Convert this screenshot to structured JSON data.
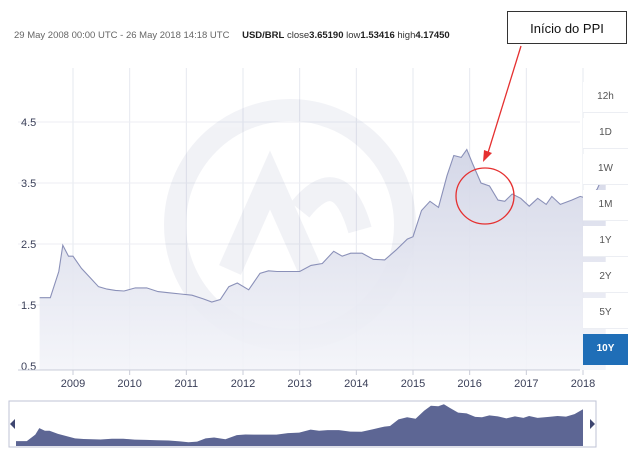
{
  "header": {
    "date_range": "29 May 2008 00:00 UTC - 26 May 2018 14:18 UTC",
    "pair": "USD/BRL",
    "close_label": "close",
    "close_value": "3.65190",
    "low_label": "low",
    "low_value": "1.53416",
    "high_label": "high",
    "high_value": "4.17450"
  },
  "annotation": {
    "label": "Início do PPI",
    "color": "#e53030"
  },
  "range_buttons": [
    {
      "label": "12h",
      "active": false
    },
    {
      "label": "1D",
      "active": false
    },
    {
      "label": "1W",
      "active": false
    },
    {
      "label": "1M",
      "active": false
    },
    {
      "label": "1Y",
      "active": false
    },
    {
      "label": "2Y",
      "active": false
    },
    {
      "label": "5Y",
      "active": false
    },
    {
      "label": "10Y",
      "active": true
    }
  ],
  "colors": {
    "line": "#8a90b8",
    "fill_top": "#d9dbea",
    "nav_fill": "#5d6694",
    "accent": "#1f6eb7"
  },
  "chart_data": {
    "type": "area",
    "title": "",
    "xlabel": "",
    "ylabel": "",
    "ylim": [
      0.5,
      4.5
    ],
    "yticks": [
      "4.5",
      "3.5",
      "2.5",
      "1.5",
      "0.5"
    ],
    "xtick_labels": [
      "2009",
      "2010",
      "2011",
      "2012",
      "2013",
      "2014",
      "2015",
      "2016",
      "2017",
      "2018"
    ],
    "grid": true,
    "series": [
      {
        "x": [
          2008.41,
          2008.6,
          2008.75,
          2008.82,
          2008.92,
          2009.0,
          2009.15,
          2009.3,
          2009.45,
          2009.6,
          2009.75,
          2009.9,
          2010.1,
          2010.3,
          2010.5,
          2010.7,
          2010.9,
          2011.1,
          2011.3,
          2011.45,
          2011.6,
          2011.75,
          2011.9,
          2012.1,
          2012.3,
          2012.45,
          2012.6,
          2012.8,
          2013.0,
          2013.2,
          2013.4,
          2013.6,
          2013.75,
          2013.9,
          2014.1,
          2014.3,
          2014.5,
          2014.7,
          2014.9,
          2015.0,
          2015.15,
          2015.3,
          2015.45,
          2015.6,
          2015.72,
          2015.85,
          2015.95,
          2016.05,
          2016.2,
          2016.35,
          2016.5,
          2016.62,
          2016.75,
          2016.9,
          2017.05,
          2017.2,
          2017.35,
          2017.45,
          2017.6,
          2017.8,
          2017.95,
          2018.1,
          2018.25,
          2018.4
        ],
        "y": [
          1.62,
          1.62,
          2.05,
          2.48,
          2.3,
          2.3,
          2.1,
          1.95,
          1.8,
          1.76,
          1.74,
          1.73,
          1.78,
          1.78,
          1.72,
          1.7,
          1.68,
          1.66,
          1.6,
          1.55,
          1.59,
          1.8,
          1.86,
          1.75,
          2.02,
          2.06,
          2.05,
          2.05,
          2.05,
          2.15,
          2.18,
          2.38,
          2.3,
          2.35,
          2.35,
          2.25,
          2.24,
          2.4,
          2.58,
          2.62,
          3.05,
          3.2,
          3.1,
          3.62,
          3.95,
          3.92,
          4.05,
          3.82,
          3.5,
          3.45,
          3.22,
          3.2,
          3.32,
          3.25,
          3.12,
          3.25,
          3.15,
          3.28,
          3.15,
          3.22,
          3.28,
          3.24,
          3.4,
          3.72
        ]
      }
    ]
  }
}
